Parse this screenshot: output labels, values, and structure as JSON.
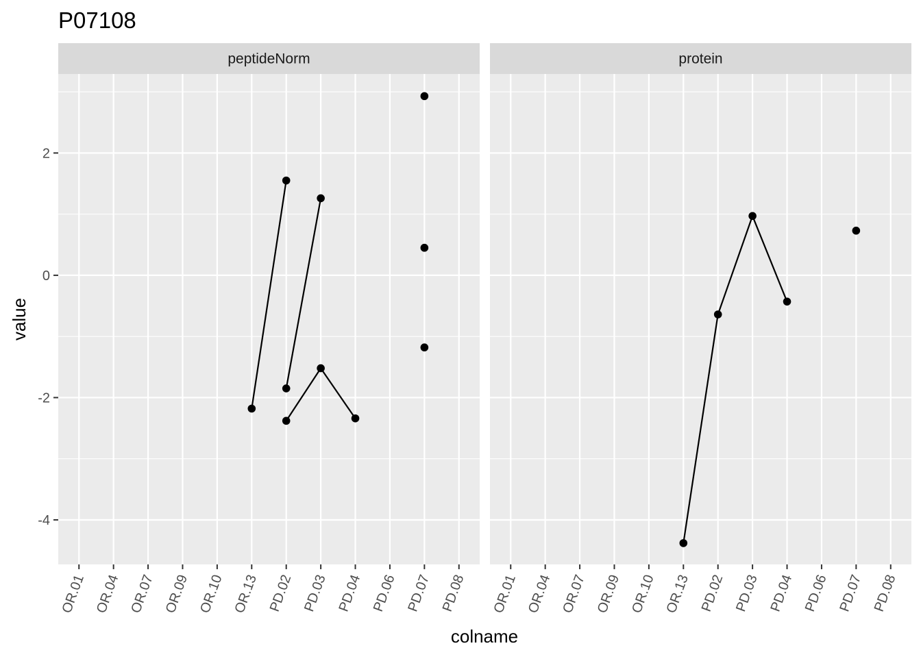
{
  "chart_data": {
    "type": "line",
    "title": "P07108",
    "xlabel": "colname",
    "ylabel": "value",
    "ylim": [
      -4.7,
      3.1
    ],
    "yticks": [
      -4,
      -2,
      0,
      2
    ],
    "grid": true,
    "categories": [
      "OR.01",
      "OR.04",
      "OR.07",
      "OR.09",
      "OR.10",
      "OR.13",
      "PD.02",
      "PD.03",
      "PD.04",
      "PD.06",
      "PD.07",
      "PD.08"
    ],
    "panels": [
      {
        "name": "peptideNorm",
        "lines": [
          {
            "points": [
              {
                "x": "OR.13",
                "y": -2.18
              },
              {
                "x": "PD.02",
                "y": 1.55
              }
            ]
          },
          {
            "points": [
              {
                "x": "PD.02",
                "y": -1.85
              },
              {
                "x": "PD.03",
                "y": 1.26
              }
            ]
          },
          {
            "points": [
              {
                "x": "PD.02",
                "y": -2.38
              },
              {
                "x": "PD.03",
                "y": -1.52
              },
              {
                "x": "PD.04",
                "y": -2.34
              }
            ]
          },
          {
            "points": [
              {
                "x": "PD.07",
                "y": 2.93
              }
            ]
          },
          {
            "points": [
              {
                "x": "PD.07",
                "y": 0.45
              }
            ]
          },
          {
            "points": [
              {
                "x": "PD.07",
                "y": -1.18
              }
            ]
          }
        ]
      },
      {
        "name": "protein",
        "lines": [
          {
            "points": [
              {
                "x": "OR.13",
                "y": -4.38
              },
              {
                "x": "PD.02",
                "y": -0.64
              },
              {
                "x": "PD.03",
                "y": 0.97
              },
              {
                "x": "PD.04",
                "y": -0.43
              }
            ]
          },
          {
            "points": [
              {
                "x": "PD.07",
                "y": 0.73
              }
            ]
          }
        ]
      }
    ],
    "colors": {
      "panel_bg": "#ebebeb",
      "strip_bg": "#d9d9d9",
      "grid": "#ffffff",
      "line": "#000000",
      "tick_text": "#4d4d4d"
    }
  }
}
